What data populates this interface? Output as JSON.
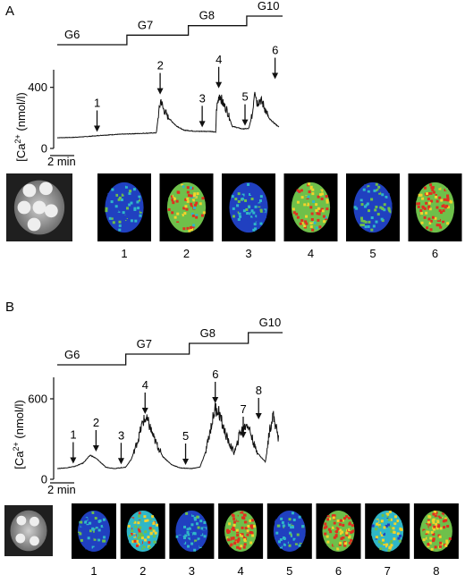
{
  "chart_data": [
    {
      "panel": "A",
      "type": "line",
      "ylabel": "[Ca2+]i (nmol/l)",
      "ylabel_main": "[Ca",
      "ylabel_sup": "2+",
      "ylabel_sub": "i",
      "ylabel_tail": " (nmol/l)",
      "yticks": [
        0,
        400
      ],
      "ylim": [
        0,
        480
      ],
      "xlim_min": [
        0,
        22
      ],
      "scalebar": "2 min",
      "scalebar_min": 2,
      "glucose_steps": [
        {
          "label": "G6",
          "start": 0,
          "end": 6.8
        },
        {
          "label": "G7",
          "start": 6.8,
          "end": 12.8
        },
        {
          "label": "G8",
          "start": 12.8,
          "end": 18.5
        },
        {
          "label": "G10",
          "start": 18.5,
          "end": 22
        }
      ],
      "trace": [
        [
          0,
          70
        ],
        [
          2,
          72
        ],
        [
          4,
          78
        ],
        [
          6,
          86
        ],
        [
          8,
          92
        ],
        [
          10,
          96
        ],
        [
          12,
          100
        ],
        [
          13.2,
          102
        ],
        [
          13.5,
          230
        ],
        [
          13.8,
          320
        ],
        [
          14.1,
          260
        ],
        [
          14.8,
          200
        ],
        [
          15.8,
          150
        ],
        [
          16.8,
          120
        ],
        [
          18.5,
          112
        ],
        [
          20.3,
          112
        ],
        [
          21.1,
          106
        ],
        [
          21.2,
          255
        ],
        [
          21.6,
          360
        ],
        [
          22,
          300
        ],
        [
          22.6,
          250
        ],
        [
          23.3,
          145
        ],
        [
          24.6,
          128
        ],
        [
          25.5,
          130
        ],
        [
          26.0,
          230
        ],
        [
          26.3,
          400
        ],
        [
          26.6,
          300
        ],
        [
          27,
          320
        ],
        [
          27.4,
          290
        ],
        [
          28.2,
          195
        ],
        [
          29.5,
          140
        ]
      ],
      "arrows": [
        {
          "label": "1",
          "x": 5.3,
          "y": 85
        },
        {
          "label": "2",
          "x": 13.7,
          "y": 330
        },
        {
          "label": "3",
          "x": 19.3,
          "y": 115
        },
        {
          "label": "4",
          "x": 21.5,
          "y": 370
        },
        {
          "label": "5",
          "x": 25.0,
          "y": 125
        },
        {
          "label": "6",
          "x": 29.0,
          "y": 430
        }
      ],
      "images": [
        {
          "label": "1",
          "level": 0.15
        },
        {
          "label": "2",
          "level": 0.7
        },
        {
          "label": "3",
          "level": 0.2
        },
        {
          "label": "4",
          "level": 0.72
        },
        {
          "label": "5",
          "level": 0.22
        },
        {
          "label": "6",
          "level": 0.85
        }
      ]
    },
    {
      "panel": "B",
      "type": "line",
      "ylabel": "[Ca2+]i (nmol/l)",
      "ylabel_main": "[Ca",
      "ylabel_sup": "2+",
      "ylabel_sub": "i",
      "ylabel_tail": " (nmol/l)",
      "yticks": [
        0,
        600
      ],
      "ylim": [
        0,
        720
      ],
      "scalebar": "2 min",
      "scalebar_min": 2,
      "glucose_steps": [
        {
          "label": "G6",
          "start": 0,
          "end": 10.8
        },
        {
          "label": "G7",
          "start": 10.8,
          "end": 20.8
        },
        {
          "label": "G8",
          "start": 20.8,
          "end": 30.1
        },
        {
          "label": "G10",
          "start": 30.1,
          "end": 35.5
        }
      ],
      "trace": [
        [
          0,
          80
        ],
        [
          1.5,
          85
        ],
        [
          3,
          95
        ],
        [
          4.5,
          120
        ],
        [
          5.8,
          180
        ],
        [
          7,
          150
        ],
        [
          8.5,
          90
        ],
        [
          10,
          80
        ],
        [
          12,
          90
        ],
        [
          13,
          150
        ],
        [
          14.2,
          300
        ],
        [
          15,
          430
        ],
        [
          15.5,
          450
        ],
        [
          16,
          420
        ],
        [
          17,
          300
        ],
        [
          18.5,
          170
        ],
        [
          20,
          110
        ],
        [
          21.5,
          85
        ],
        [
          23.5,
          80
        ],
        [
          25,
          90
        ],
        [
          26,
          200
        ],
        [
          27,
          400
        ],
        [
          27.7,
          530
        ],
        [
          28.3,
          510
        ],
        [
          29,
          400
        ],
        [
          30,
          280
        ],
        [
          31,
          200
        ],
        [
          31.5,
          250
        ],
        [
          32,
          350
        ],
        [
          32.7,
          380
        ],
        [
          33.3,
          420
        ],
        [
          34,
          330
        ],
        [
          34.8,
          220
        ],
        [
          35.6,
          170
        ],
        [
          36.5,
          130
        ],
        [
          37.2,
          360
        ],
        [
          37.8,
          480
        ],
        [
          38.3,
          400
        ],
        [
          38.8,
          300
        ]
      ],
      "arrows": [
        {
          "label": "1",
          "x": 2.8,
          "y": 90
        },
        {
          "label": "2",
          "x": 6.8,
          "y": 180
        },
        {
          "label": "3",
          "x": 11.2,
          "y": 85
        },
        {
          "label": "4",
          "x": 15.4,
          "y": 460
        },
        {
          "label": "5",
          "x": 22.5,
          "y": 80
        },
        {
          "label": "6",
          "x": 27.7,
          "y": 540
        },
        {
          "label": "7",
          "x": 32.6,
          "y": 280
        },
        {
          "label": "8",
          "x": 35.3,
          "y": 420
        }
      ],
      "images": [
        {
          "label": "1",
          "level": 0.15
        },
        {
          "label": "2",
          "level": 0.55
        },
        {
          "label": "3",
          "level": 0.1
        },
        {
          "label": "4",
          "level": 0.85
        },
        {
          "label": "5",
          "level": 0.12
        },
        {
          "label": "6",
          "level": 0.8
        },
        {
          "label": "7",
          "level": 0.45
        },
        {
          "label": "8",
          "level": 0.75
        }
      ]
    }
  ],
  "colors": {
    "ink": "#111111",
    "tile_bg": "#000000",
    "cell_low": "#2040c0",
    "cell_mid": "#2fb7c8",
    "cell_green": "#6ec04a",
    "cell_yellow": "#f3d22b",
    "cell_red": "#e03020",
    "islet_bg": "#1f1f1f",
    "islet_dot": "#eeeeee"
  }
}
